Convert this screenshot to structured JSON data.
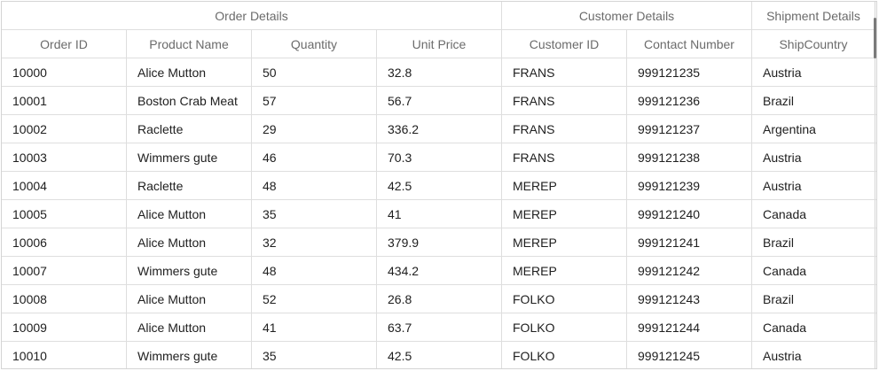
{
  "stacked_headers": [
    {
      "label": "Order Details"
    },
    {
      "label": "Customer Details"
    },
    {
      "label": "Shipment Details"
    }
  ],
  "columns": [
    {
      "label": "Order ID"
    },
    {
      "label": "Product Name"
    },
    {
      "label": "Quantity"
    },
    {
      "label": "Unit Price"
    },
    {
      "label": "Customer ID"
    },
    {
      "label": "Contact Number"
    },
    {
      "label": "ShipCountry"
    }
  ],
  "rows": [
    [
      "10000",
      "Alice Mutton",
      "50",
      "32.8",
      "FRANS",
      "999121235",
      "Austria"
    ],
    [
      "10001",
      "Boston Crab Meat",
      "57",
      "56.7",
      "FRANS",
      "999121236",
      "Brazil"
    ],
    [
      "10002",
      "Raclette",
      "29",
      "336.2",
      "FRANS",
      "999121237",
      "Argentina"
    ],
    [
      "10003",
      "Wimmers gute",
      "46",
      "70.3",
      "FRANS",
      "999121238",
      "Austria"
    ],
    [
      "10004",
      "Raclette",
      "48",
      "42.5",
      "MEREP",
      "999121239",
      "Austria"
    ],
    [
      "10005",
      "Alice Mutton",
      "35",
      "41",
      "MEREP",
      "999121240",
      "Canada"
    ],
    [
      "10006",
      "Alice Mutton",
      "32",
      "379.9",
      "MEREP",
      "999121241",
      "Brazil"
    ],
    [
      "10007",
      "Wimmers gute",
      "48",
      "434.2",
      "MEREP",
      "999121242",
      "Canada"
    ],
    [
      "10008",
      "Alice Mutton",
      "52",
      "26.8",
      "FOLKO",
      "999121243",
      "Brazil"
    ],
    [
      "10009",
      "Alice Mutton",
      "41",
      "63.7",
      "FOLKO",
      "999121244",
      "Canada"
    ],
    [
      "10010",
      "Wimmers gute",
      "35",
      "42.5",
      "FOLKO",
      "999121245",
      "Austria"
    ]
  ]
}
